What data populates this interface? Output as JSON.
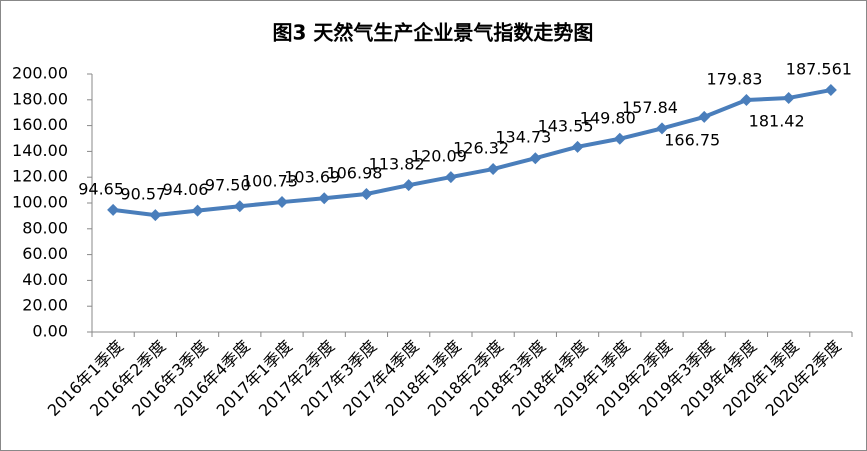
{
  "chart_data": {
    "type": "line",
    "title": "图3 天然气生产企业景气指数走势图",
    "categories": [
      "2016年1季度",
      "2016年2季度",
      "2016年3季度",
      "2016年4季度",
      "2017年1季度",
      "2017年2季度",
      "2017年3季度",
      "2017年4季度",
      "2018年1季度",
      "2018年2季度",
      "2018年3季度",
      "2018年4季度",
      "2019年1季度",
      "2019年2季度",
      "2019年3季度",
      "2019年4季度",
      "2020年1季度",
      "2020年2季度"
    ],
    "values": [
      94.65,
      90.57,
      94.06,
      97.5,
      100.73,
      103.69,
      106.98,
      113.82,
      120.09,
      126.32,
      134.73,
      143.55,
      149.8,
      157.84,
      166.75,
      179.83,
      181.42,
      187.561
    ],
    "value_labels": [
      "94.65",
      "90.57",
      "94.06",
      "97.50",
      "100.73",
      "103.69",
      "106.98",
      "113.82",
      "120.09",
      "126.32",
      "134.73",
      "143.55",
      "149.80",
      "157.84",
      "166.75",
      "179.83",
      "181.42",
      "187.561"
    ],
    "color": "#4a7ebb",
    "ylim": [
      0,
      200
    ],
    "yticks": [
      {
        "value": 0,
        "label": "0.00"
      },
      {
        "value": 20,
        "label": "20.00"
      },
      {
        "value": 40,
        "label": "40.00"
      },
      {
        "value": 60,
        "label": "60.00"
      },
      {
        "value": 80,
        "label": "80.00"
      },
      {
        "value": 100,
        "label": "100.00"
      },
      {
        "value": 120,
        "label": "120.00"
      },
      {
        "value": 140,
        "label": "140.00"
      },
      {
        "value": 160,
        "label": "160.00"
      },
      {
        "value": 180,
        "label": "180.00"
      },
      {
        "value": 200,
        "label": "200.00"
      }
    ],
    "grid": false
  }
}
